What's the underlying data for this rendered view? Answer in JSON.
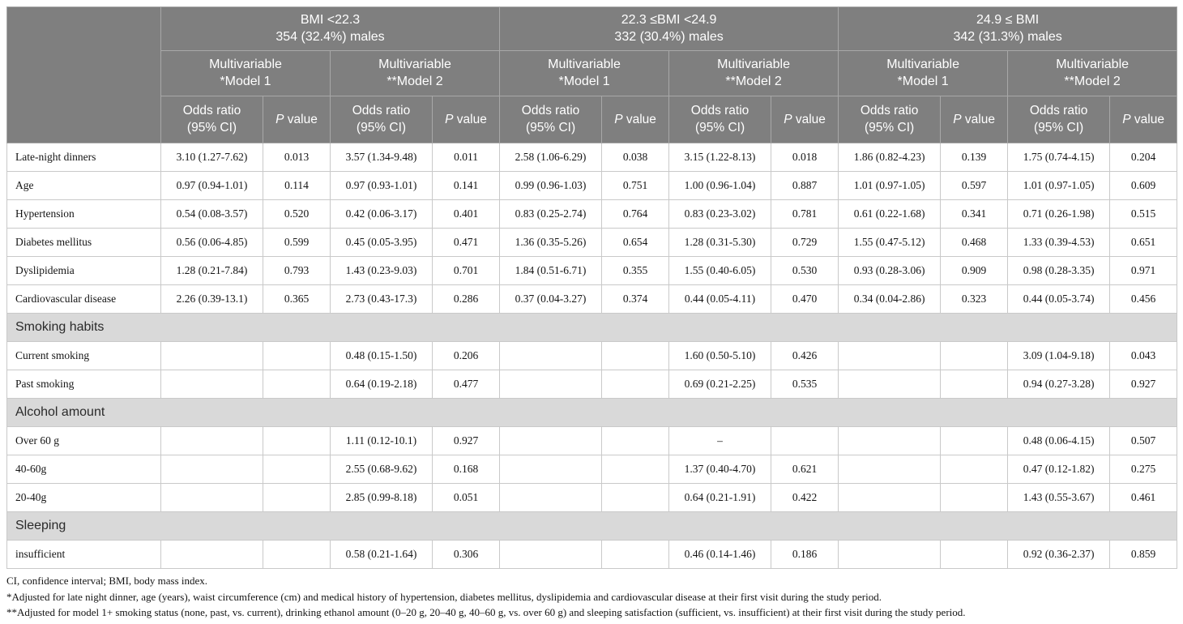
{
  "table": {
    "groups": [
      {
        "line1": "BMI <22.3",
        "line2": "354 (32.4%) males"
      },
      {
        "line1": "22.3 ≤BMI <24.9",
        "line2": "332 (30.4%) males"
      },
      {
        "line1": "24.9 ≤ BMI",
        "line2": "342 (31.3%) males"
      }
    ],
    "models": [
      {
        "line1": "Multivariable",
        "line2": "*Model 1"
      },
      {
        "line1": "Multivariable",
        "line2": "**Model 2"
      }
    ],
    "columns": {
      "odds_line1": "Odds ratio",
      "odds_line2": "(95% CI)",
      "p_italic": "P",
      "p_rest": " value"
    },
    "rows": [
      {
        "type": "data",
        "label": "Late-night dinners",
        "cells": [
          "3.10 (1.27-7.62)",
          "0.013",
          "3.57 (1.34-9.48)",
          "0.011",
          "2.58 (1.06-6.29)",
          "0.038",
          "3.15 (1.22-8.13)",
          "0.018",
          "1.86 (0.82-4.23)",
          "0.139",
          "1.75 (0.74-4.15)",
          "0.204"
        ]
      },
      {
        "type": "data",
        "label": "Age",
        "cells": [
          "0.97 (0.94-1.01)",
          "0.114",
          "0.97 (0.93-1.01)",
          "0.141",
          "0.99 (0.96-1.03)",
          "0.751",
          "1.00 (0.96-1.04)",
          "0.887",
          "1.01 (0.97-1.05)",
          "0.597",
          "1.01 (0.97-1.05)",
          "0.609"
        ]
      },
      {
        "type": "data",
        "label": "Hypertension",
        "cells": [
          "0.54 (0.08-3.57)",
          "0.520",
          "0.42 (0.06-3.17)",
          "0.401",
          "0.83 (0.25-2.74)",
          "0.764",
          "0.83 (0.23-3.02)",
          "0.781",
          "0.61 (0.22-1.68)",
          "0.341",
          "0.71 (0.26-1.98)",
          "0.515"
        ]
      },
      {
        "type": "data",
        "label": "Diabetes mellitus",
        "cells": [
          "0.56 (0.06-4.85)",
          "0.599",
          "0.45 (0.05-3.95)",
          "0.471",
          "1.36 (0.35-5.26)",
          "0.654",
          "1.28 (0.31-5.30)",
          "0.729",
          "1.55 (0.47-5.12)",
          "0.468",
          "1.33 (0.39-4.53)",
          "0.651"
        ]
      },
      {
        "type": "data",
        "label": "Dyslipidemia",
        "cells": [
          "1.28 (0.21-7.84)",
          "0.793",
          "1.43 (0.23-9.03)",
          "0.701",
          "1.84 (0.51-6.71)",
          "0.355",
          "1.55 (0.40-6.05)",
          "0.530",
          "0.93 (0.28-3.06)",
          "0.909",
          "0.98 (0.28-3.35)",
          "0.971"
        ]
      },
      {
        "type": "data",
        "label": "Cardiovascular disease",
        "cells": [
          "2.26 (0.39-13.1)",
          "0.365",
          "2.73 (0.43-17.3)",
          "0.286",
          "0.37 (0.04-3.27)",
          "0.374",
          "0.44 (0.05-4.11)",
          "0.470",
          "0.34 (0.04-2.86)",
          "0.323",
          "0.44 (0.05-3.74)",
          "0.456"
        ]
      },
      {
        "type": "section",
        "label": "Smoking habits"
      },
      {
        "type": "data",
        "label": "Current smoking",
        "cells": [
          "",
          "",
          "0.48 (0.15-1.50)",
          "0.206",
          "",
          "",
          "1.60 (0.50-5.10)",
          "0.426",
          "",
          "",
          "3.09 (1.04-9.18)",
          "0.043"
        ]
      },
      {
        "type": "data",
        "label": "Past smoking",
        "cells": [
          "",
          "",
          "0.64 (0.19-2.18)",
          "0.477",
          "",
          "",
          "0.69 (0.21-2.25)",
          "0.535",
          "",
          "",
          "0.94 (0.27-3.28)",
          "0.927"
        ]
      },
      {
        "type": "section",
        "label": "Alcohol amount"
      },
      {
        "type": "data",
        "label": "Over 60 g",
        "cells": [
          "",
          "",
          "1.11 (0.12-10.1)",
          "0.927",
          "",
          "",
          "–",
          "",
          "",
          "",
          "0.48 (0.06-4.15)",
          "0.507"
        ]
      },
      {
        "type": "data",
        "label": "40-60g",
        "cells": [
          "",
          "",
          "2.55 (0.68-9.62)",
          "0.168",
          "",
          "",
          "1.37 (0.40-4.70)",
          "0.621",
          "",
          "",
          "0.47 (0.12-1.82)",
          "0.275"
        ]
      },
      {
        "type": "data",
        "label": "20-40g",
        "cells": [
          "",
          "",
          "2.85 (0.99-8.18)",
          "0.051",
          "",
          "",
          "0.64 (0.21-1.91)",
          "0.422",
          "",
          "",
          "1.43 (0.55-3.67)",
          "0.461"
        ]
      },
      {
        "type": "section",
        "label": "Sleeping"
      },
      {
        "type": "data",
        "label": "insufficient",
        "cells": [
          "",
          "",
          "0.58 (0.21-1.64)",
          "0.306",
          "",
          "",
          "0.46 (0.14-1.46)",
          "0.186",
          "",
          "",
          "0.92 (0.36-2.37)",
          "0.859"
        ]
      }
    ],
    "footnotes": [
      "CI, confidence interval; BMI, body mass index.",
      "*Adjusted for late night dinner, age (years), waist circumference (cm) and medical history of hypertension, diabetes mellitus, dyslipidemia and cardiovascular disease at their first visit during the study period.",
      "**Adjusted for model 1+ smoking status (none, past, vs. current), drinking ethanol amount (0–20 g, 20–40 g, 40–60 g, vs. over 60 g) and sleeping satisfaction (sufficient, vs. insufficient) at their first visit during the study period."
    ]
  }
}
